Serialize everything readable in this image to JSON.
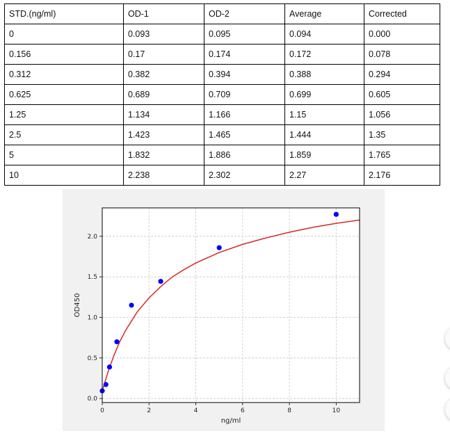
{
  "table": {
    "headers": [
      "STD.(ng/ml)",
      "OD-1",
      "OD-2",
      "Average",
      "Corrected"
    ],
    "rows": [
      [
        "0",
        "0.093",
        "0.095",
        "0.094",
        "0.000"
      ],
      [
        "0.156",
        "0.17",
        "0.174",
        "0.172",
        "0.078"
      ],
      [
        "0.312",
        "0.382",
        "0.394",
        "0.388",
        "0.294"
      ],
      [
        "0.625",
        "0.689",
        "0.709",
        "0.699",
        "0.605"
      ],
      [
        "1.25",
        "1.134",
        "1.166",
        "1.15",
        "1.056"
      ],
      [
        "2.5",
        "1.423",
        "1.465",
        "1.444",
        "1.35"
      ],
      [
        "5",
        "1.832",
        "1.886",
        "1.859",
        "1.765"
      ],
      [
        "10",
        "2.238",
        "2.302",
        "2.27",
        "2.176"
      ]
    ]
  },
  "chart_data": {
    "type": "scatter",
    "title": "",
    "xlabel": "ng/ml",
    "ylabel": "OD450",
    "xlim": [
      0,
      11
    ],
    "ylim": [
      -0.05,
      2.35
    ],
    "xticks": [
      "0",
      "2",
      "4",
      "6",
      "8",
      "10"
    ],
    "yticks": [
      "0.0",
      "0.5",
      "1.0",
      "1.5",
      "2.0"
    ],
    "grid": true,
    "series": [
      {
        "type": "scatter",
        "color": "#0000ff",
        "x": [
          0,
          0.156,
          0.312,
          0.625,
          1.25,
          2.5,
          5,
          10
        ],
        "y": [
          0.094,
          0.172,
          0.388,
          0.699,
          1.15,
          1.444,
          1.859,
          2.27
        ]
      },
      {
        "type": "fit-curve",
        "color": "#d62728",
        "x": [
          0,
          0.1,
          0.25,
          0.5,
          0.75,
          1,
          1.5,
          2,
          2.5,
          3,
          3.5,
          4,
          5,
          6,
          7,
          8,
          9,
          10,
          11
        ],
        "y": [
          0.09,
          0.19,
          0.33,
          0.53,
          0.7,
          0.84,
          1.07,
          1.24,
          1.38,
          1.5,
          1.59,
          1.67,
          1.8,
          1.9,
          1.98,
          2.05,
          2.11,
          2.16,
          2.2
        ]
      }
    ]
  },
  "colors": {
    "grid": "#c8c8c8",
    "figure_bg": "#f1f1f1",
    "plot_bg": "#ffffff"
  }
}
